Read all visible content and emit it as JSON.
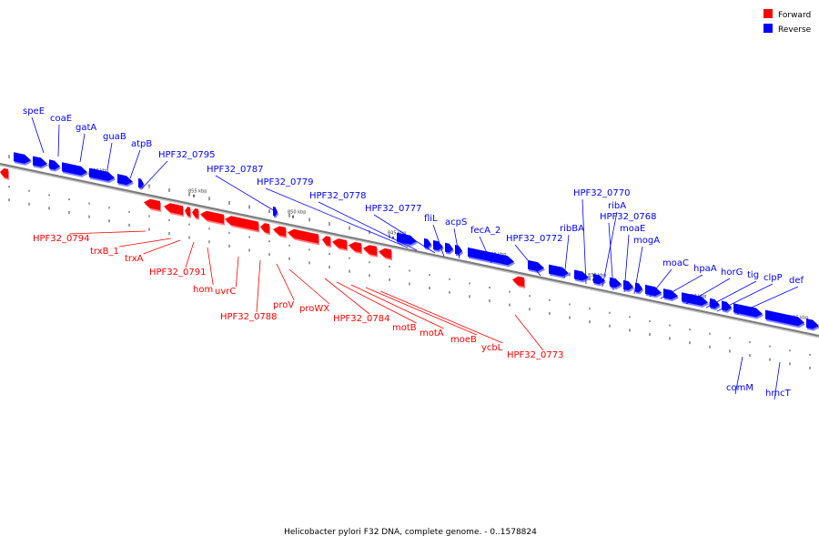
{
  "caption": "Helicobacter pylori F32 DNA, complete genome. - 0..1578824",
  "colors": {
    "forward": "#ff0000",
    "reverse": "#0000ff",
    "axis": "#888888"
  },
  "legend": [
    {
      "label": "Forward",
      "color": "#ff0000"
    },
    {
      "label": "Reverse",
      "color": "#0000ff"
    }
  ],
  "axis_ticks": [
    "860 kbp",
    "855 kbp",
    "850 kbp",
    "845 kbp",
    "840 kbp",
    "835 kbp",
    "830 kbp",
    "825 kbp"
  ],
  "reverse_labels": [
    "speE",
    "coaE",
    "gatA",
    "guaB",
    "atpB",
    "HPF32_0795",
    "HPF32_0787",
    "HPF32_0779",
    "HPF32_0778",
    "HPF32_0777",
    "fliL",
    "acpS",
    "fecA_2",
    "HPF32_0772",
    "ribBA",
    "HPF32_0770",
    "ribA",
    "HPF32_0768",
    "moaE",
    "mogA",
    "moaC",
    "hpaA",
    "horG",
    "tig",
    "clpP",
    "def",
    "comM",
    "hmcT"
  ],
  "forward_labels": [
    "HPF32_0794",
    "trxB_1",
    "trxA",
    "HPF32_0791",
    "hom",
    "uvrC",
    "HPF32_0788",
    "proV",
    "proWX",
    "HPF32_0784",
    "motB",
    "motA",
    "moeB",
    "ycbL",
    "HPF32_0773"
  ]
}
